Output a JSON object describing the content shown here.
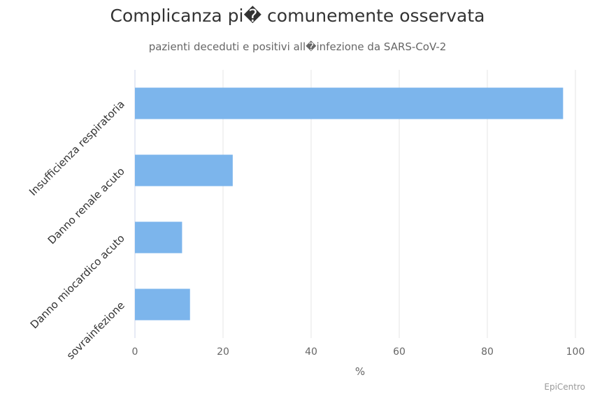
{
  "title": "Complicanza pi� comunemente osservata",
  "subtitle": "pazienti deceduti e positivi all�infezione da SARS-CoV-2",
  "credits": "EpiCentro",
  "colors": {
    "bar": "#7cb5ec",
    "grid": "#e6e6e6",
    "axis": "#ccd6eb"
  },
  "chart_data": {
    "type": "bar",
    "orientation": "horizontal",
    "categories": [
      "Insufficienza respiratoria",
      "Danno renale acuto",
      "Danno miocardico acuto",
      "sovrainfezione"
    ],
    "values": [
      97.2,
      22.2,
      10.7,
      12.5
    ],
    "xlabel": "%",
    "xlim": [
      0,
      100
    ],
    "xticks": [
      "0",
      "20",
      "40",
      "60",
      "80",
      "100"
    ],
    "grid": true,
    "legend": "none"
  }
}
